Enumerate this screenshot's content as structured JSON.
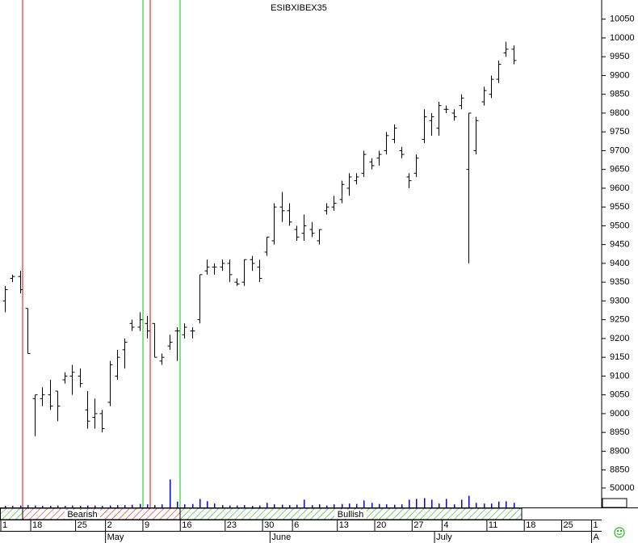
{
  "chart_data": {
    "type": "ohlc",
    "title": "ESIBXIBEX35",
    "categories": [
      "1",
      null,
      null,
      null,
      "18",
      null,
      null,
      null,
      null,
      null,
      "25",
      null,
      null,
      null,
      "2",
      null,
      null,
      null,
      null,
      "9",
      null,
      null,
      null,
      null,
      "16",
      null,
      null,
      null,
      null,
      null,
      "23",
      null,
      null,
      null,
      null,
      "30",
      null,
      null,
      null,
      "6",
      null,
      null,
      null,
      null,
      null,
      "13",
      null,
      null,
      null,
      null,
      "20",
      null,
      null,
      null,
      null,
      "27",
      null,
      null,
      null,
      "4",
      null,
      null,
      null,
      null,
      null,
      "11",
      null,
      null,
      null,
      null,
      "18",
      null,
      null,
      null,
      null,
      "25",
      null,
      null,
      null,
      "1"
    ],
    "months": [
      null,
      null,
      null,
      null,
      null,
      null,
      null,
      null,
      null,
      null,
      null,
      null,
      null,
      null,
      "May",
      null,
      null,
      null,
      null,
      null,
      null,
      null,
      null,
      null,
      null,
      null,
      null,
      null,
      null,
      null,
      null,
      null,
      null,
      null,
      null,
      null,
      "June",
      null,
      null,
      null,
      null,
      null,
      null,
      null,
      null,
      null,
      null,
      null,
      null,
      null,
      null,
      null,
      null,
      null,
      null,
      null,
      null,
      null,
      "July",
      null,
      null,
      null,
      null,
      null,
      null,
      null,
      null,
      null,
      null,
      null,
      null,
      null,
      null,
      null,
      null,
      null,
      null,
      null,
      null,
      "A"
    ],
    "open": [
      9300,
      9360,
      9365,
      9280,
      9040,
      9040,
      9050,
      9060,
      9090,
      9100,
      9100,
      9010,
      8990,
      9000,
      9030,
      9100,
      9170,
      9240,
      9230,
      9240,
      9240,
      9140,
      9180,
      9220,
      9210,
      9220,
      9250,
      9380,
      9390,
      9390,
      9400,
      9350,
      9350,
      9410,
      9390,
      9430,
      9460,
      9550,
      9540,
      9490,
      9480,
      9490,
      9460,
      9540,
      9550,
      9570,
      9600,
      9620,
      9640,
      9670,
      9680,
      9700,
      9730,
      9700,
      9630,
      9640,
      9730,
      9780,
      9760,
      9810,
      9800,
      9820,
      9650,
      9700,
      9830,
      9850,
      9890,
      9960,
      9970,
      null,
      null,
      null,
      null,
      null,
      null,
      null,
      null,
      null,
      null,
      null
    ],
    "high": [
      9340,
      9370,
      9380,
      9280,
      9050,
      9070,
      9090,
      9060,
      9110,
      9130,
      9120,
      9060,
      9040,
      9010,
      9140,
      9170,
      9200,
      9250,
      9270,
      9260,
      9240,
      9160,
      9210,
      9230,
      9240,
      9230,
      9370,
      9410,
      9400,
      9410,
      9410,
      9360,
      9410,
      9420,
      9410,
      9470,
      9560,
      9590,
      9560,
      9500,
      9530,
      9510,
      9490,
      9560,
      9580,
      9620,
      9640,
      9640,
      9700,
      9680,
      9700,
      9750,
      9770,
      9710,
      9640,
      9690,
      9810,
      9800,
      9830,
      9820,
      9810,
      9850,
      9800,
      9790,
      9870,
      9900,
      9940,
      9990,
      9980,
      null,
      null,
      null,
      null,
      null,
      null,
      null,
      null,
      null,
      null,
      null
    ],
    "low": [
      9270,
      9350,
      9320,
      9160,
      8940,
      9020,
      9010,
      8980,
      9080,
      9050,
      9070,
      8960,
      8960,
      8950,
      9020,
      9090,
      9120,
      9220,
      9220,
      9200,
      9150,
      9130,
      9170,
      9140,
      9200,
      9200,
      9240,
      9370,
      9370,
      9380,
      9350,
      9340,
      9340,
      9380,
      9350,
      9420,
      9450,
      9510,
      9500,
      9460,
      9460,
      9470,
      9450,
      9530,
      9540,
      9560,
      9580,
      9610,
      9630,
      9650,
      9660,
      9690,
      9720,
      9680,
      9600,
      9630,
      9720,
      9740,
      9740,
      9800,
      9780,
      9810,
      9400,
      9690,
      9820,
      9840,
      9880,
      9950,
      9930,
      null,
      null,
      null,
      null,
      null,
      null,
      null,
      null,
      null,
      null,
      null
    ],
    "close": [
      9330,
      9365,
      9330,
      9160,
      9050,
      9050,
      9020,
      9020,
      9100,
      9110,
      9080,
      8980,
      9000,
      8960,
      9130,
      9150,
      9190,
      9230,
      9250,
      9220,
      9150,
      9150,
      9190,
      9220,
      9230,
      9220,
      9370,
      9390,
      9390,
      9400,
      9370,
      9345,
      9410,
      9400,
      9360,
      9470,
      9550,
      9540,
      9510,
      9470,
      9500,
      9480,
      9490,
      9550,
      9560,
      9610,
      9630,
      9630,
      9690,
      9660,
      9690,
      9740,
      9760,
      9690,
      9620,
      9680,
      9790,
      9790,
      9820,
      9810,
      9790,
      9840,
      9800,
      9780,
      9860,
      9890,
      9930,
      9970,
      9940,
      null,
      null,
      null,
      null,
      null,
      null,
      null,
      null,
      null,
      null,
      null
    ],
    "volume": [
      4000,
      4000,
      5000,
      6000,
      5000,
      4000,
      4000,
      5000,
      4000,
      5000,
      4000,
      5000,
      5000,
      4000,
      5000,
      6000,
      6000,
      7000,
      9000,
      8000,
      6000,
      8000,
      72000,
      15000,
      8000,
      9000,
      22000,
      16000,
      10000,
      6000,
      5000,
      5000,
      6000,
      4000,
      5000,
      12000,
      8000,
      7000,
      6000,
      7000,
      20000,
      6000,
      8000,
      5000,
      8000,
      9000,
      10000,
      9000,
      18000,
      12000,
      9000,
      8000,
      7000,
      8000,
      20000,
      22000,
      24000,
      20000,
      10000,
      22000,
      8000,
      20000,
      30000,
      12000,
      10000,
      10000,
      15000,
      16000,
      12000,
      null,
      null,
      null,
      null,
      null,
      null,
      null,
      null,
      null,
      null,
      null
    ],
    "color": "#000000",
    "volume_color": "#0000ff",
    "ylim": [
      8832,
      10101
    ],
    "yticks": [
      8850,
      8900,
      8950,
      9000,
      9050,
      9100,
      9150,
      9200,
      9250,
      9300,
      9350,
      9400,
      9450,
      9500,
      9550,
      9600,
      9650,
      9700,
      9750,
      9800,
      9850,
      9900,
      9950,
      10000,
      10050
    ],
    "volume_ylim": [
      0,
      79000
    ],
    "volume_yticks": [
      50000
    ],
    "signals": {
      "bearish": "Bearish",
      "bullish": "Bullish"
    }
  }
}
